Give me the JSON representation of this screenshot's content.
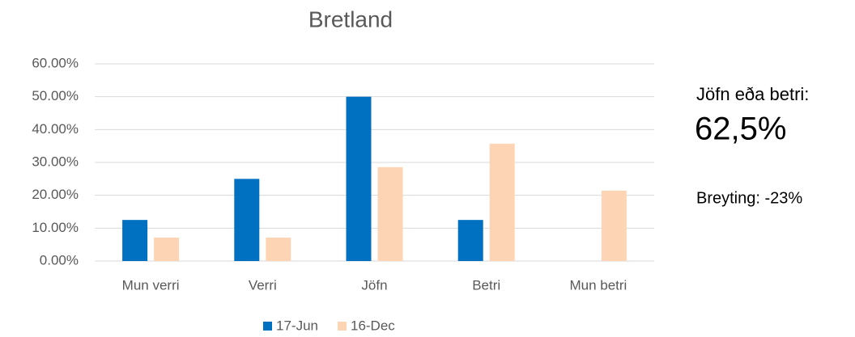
{
  "chart_data": {
    "type": "bar",
    "title": "Bretland",
    "categories": [
      "Mun verri",
      "Verri",
      "Jöfn",
      "Betri",
      "Mun betri"
    ],
    "series": [
      {
        "name": "17-Jun",
        "color": "#0070c0",
        "values": [
          12.5,
          25,
          50,
          12.5,
          0
        ]
      },
      {
        "name": "16-Dec",
        "color": "#fdd5b4",
        "values": [
          7.14,
          7.14,
          28.57,
          35.71,
          21.43
        ]
      }
    ],
    "ylim": [
      0,
      60
    ],
    "yticks": [
      {
        "value": 0,
        "label": "0.00%"
      },
      {
        "value": 10,
        "label": "10.00%"
      },
      {
        "value": 20,
        "label": "20.00%"
      },
      {
        "value": 30,
        "label": "30.00%"
      },
      {
        "value": 40,
        "label": "40.00%"
      },
      {
        "value": 50,
        "label": "50.00%"
      },
      {
        "value": 60,
        "label": "60.00%"
      }
    ],
    "grid": true,
    "legend": "bottom",
    "annotations": [
      "Jöfn eða betri:",
      "62,5%",
      "Breyting: -23%"
    ]
  }
}
